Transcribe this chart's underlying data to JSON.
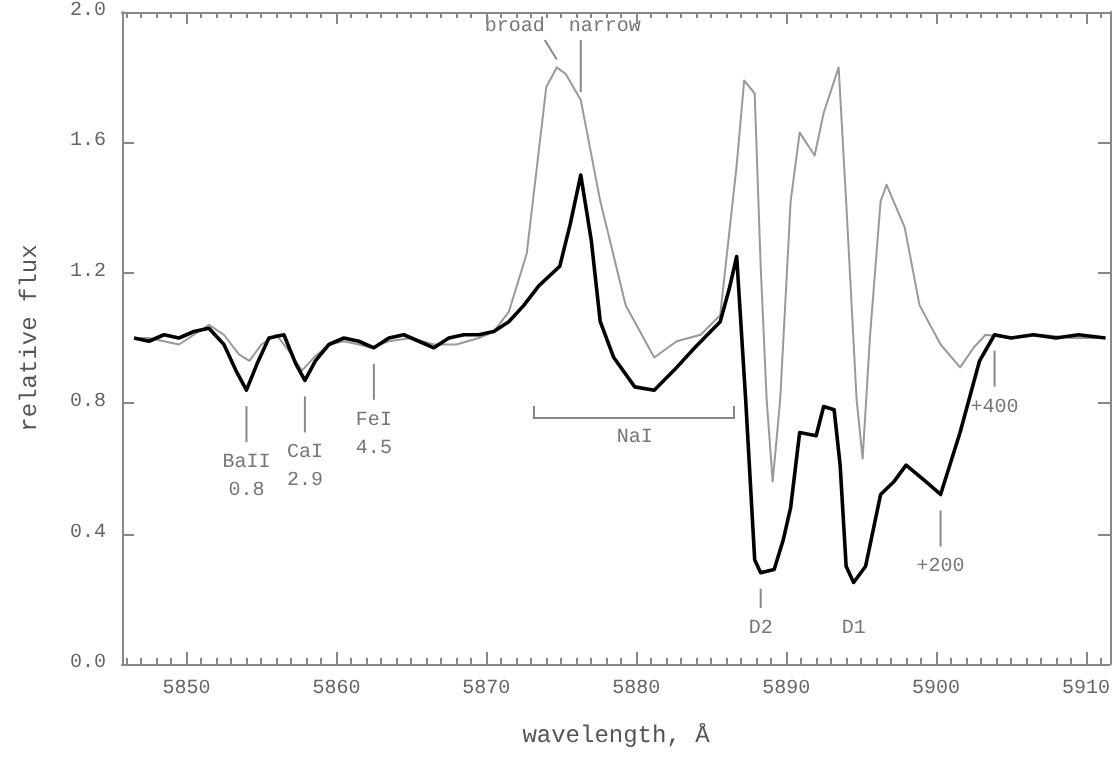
{
  "chart_data": {
    "type": "line",
    "xlabel": "wavelength, Å",
    "ylabel": "relative flux",
    "xlim": [
      5845.7,
      5911.6
    ],
    "xticks": [
      5850,
      5860,
      5870,
      5880,
      5890,
      5900,
      5910
    ],
    "ylim": [
      0,
      2
    ],
    "yticks": [
      {
        "value": 0,
        "label": "0.0"
      },
      {
        "value": 0.4,
        "label": "0.4"
      },
      {
        "value": 0.8,
        "label": "0.8"
      },
      {
        "value": 1.2,
        "label": "1.2"
      },
      {
        "value": 1.6,
        "label": "1.6"
      },
      {
        "value": 2,
        "label": "2.0"
      }
    ],
    "grid": false,
    "marker": "none",
    "line_style": "solid",
    "series": [
      {
        "color": "#999999",
        "x": [
          5846.5,
          5847.5,
          5848.5,
          5849.5,
          5850.5,
          5851.5,
          5852.5,
          5853.5,
          5854.2,
          5855.0,
          5856.0,
          5857.0,
          5857.7,
          5858.5,
          5859.5,
          5860.5,
          5861.5,
          5862.3,
          5863.5,
          5865,
          5866.5,
          5868,
          5869.5,
          5870.5,
          5871.5,
          5872.7,
          5874.0,
          5874.7,
          5875.3,
          5876.3,
          5877.6,
          5879.3,
          5881.2,
          5882.7,
          5884.3,
          5885.6,
          5886.7,
          5887.2,
          5887.9,
          5888.3,
          5888.7,
          5889.1,
          5889.6,
          5890.3,
          5890.9,
          5891.9,
          5892.5,
          5893.5,
          5894.0,
          5894.7,
          5895.1,
          5895.6,
          5896.3,
          5896.7,
          5897.9,
          5898.9,
          5900.3,
          5901.6,
          5902.5,
          5903.3,
          5905,
          5907,
          5909,
          5911.3
        ],
        "values": [
          1.0,
          1.0,
          0.99,
          0.98,
          1.01,
          1.04,
          1.01,
          0.95,
          0.93,
          0.98,
          1.01,
          0.95,
          0.9,
          0.94,
          0.98,
          0.99,
          0.98,
          0.97,
          0.99,
          1.0,
          0.98,
          0.98,
          1.0,
          1.02,
          1.08,
          1.26,
          1.77,
          1.83,
          1.81,
          1.73,
          1.42,
          1.1,
          0.94,
          0.99,
          1.01,
          1.07,
          1.53,
          1.79,
          1.75,
          1.22,
          0.81,
          0.56,
          0.81,
          1.42,
          1.63,
          1.56,
          1.69,
          1.83,
          1.42,
          0.81,
          0.63,
          1.01,
          1.42,
          1.47,
          1.34,
          1.1,
          0.98,
          0.91,
          0.97,
          1.01,
          1.0,
          1.01,
          1.0,
          1.0
        ]
      },
      {
        "color": "#000000",
        "x": [
          5846.5,
          5847.5,
          5848.5,
          5849.5,
          5850.5,
          5851.5,
          5852.5,
          5853.3,
          5854.0,
          5854.7,
          5855.5,
          5856.5,
          5857.3,
          5857.9,
          5858.6,
          5859.5,
          5860.5,
          5861.5,
          5862.5,
          5863.5,
          5864.5,
          5865.5,
          5866.5,
          5867.5,
          5868.5,
          5869.5,
          5870.5,
          5871.5,
          5872.5,
          5873.5,
          5874.9,
          5875.6,
          5876.3,
          5877.0,
          5877.6,
          5878.5,
          5879.9,
          5881.2,
          5882.5,
          5883.9,
          5885.6,
          5886.2,
          5886.7,
          5887.3,
          5887.9,
          5888.3,
          5889.2,
          5889.8,
          5890.3,
          5890.9,
          5892.0,
          5892.5,
          5893.2,
          5893.6,
          5894.0,
          5894.5,
          5895.3,
          5896.3,
          5897.2,
          5898.0,
          5899.3,
          5900.3,
          5901.6,
          5902.9,
          5903.9,
          5905,
          5906.5,
          5908,
          5909.5,
          5911.3
        ],
        "values": [
          1.0,
          0.99,
          1.01,
          1.0,
          1.02,
          1.03,
          0.98,
          0.9,
          0.84,
          0.92,
          1.0,
          1.01,
          0.92,
          0.87,
          0.93,
          0.98,
          1.0,
          0.99,
          0.97,
          1.0,
          1.01,
          0.99,
          0.97,
          1.0,
          1.01,
          1.01,
          1.02,
          1.05,
          1.1,
          1.16,
          1.22,
          1.35,
          1.5,
          1.3,
          1.05,
          0.94,
          0.85,
          0.84,
          0.9,
          0.97,
          1.05,
          1.15,
          1.25,
          0.81,
          0.32,
          0.28,
          0.29,
          0.38,
          0.48,
          0.71,
          0.7,
          0.79,
          0.78,
          0.61,
          0.3,
          0.25,
          0.3,
          0.52,
          0.56,
          0.61,
          0.56,
          0.52,
          0.71,
          0.93,
          1.01,
          1.0,
          1.01,
          1.0,
          1.01,
          1.0
        ]
      }
    ],
    "annotations": [
      {
        "text": "NaI",
        "x": 5879.9,
        "y": 0.85
      },
      {
        "text": "broad",
        "x": 5874.7,
        "y": 1.83
      },
      {
        "text": "narrow",
        "x": 5876.3,
        "y": 1.73
      },
      {
        "text": "BaII\n0.8",
        "x": 5854.0,
        "y": 0.84
      },
      {
        "text": "CaI\n2.9",
        "x": 5857.9,
        "y": 0.87
      },
      {
        "text": "FeI\n4.5",
        "x": 5862.5,
        "y": 0.97
      },
      {
        "text": "D2",
        "x": 5888.3,
        "y": 0.28
      },
      {
        "text": "D1",
        "x": 5894.5,
        "y": 0.25
      },
      {
        "text": "+200",
        "x": 5900.3,
        "y": 0.52
      },
      {
        "text": "+400",
        "x": 5903.9,
        "y": 1.01
      }
    ]
  }
}
